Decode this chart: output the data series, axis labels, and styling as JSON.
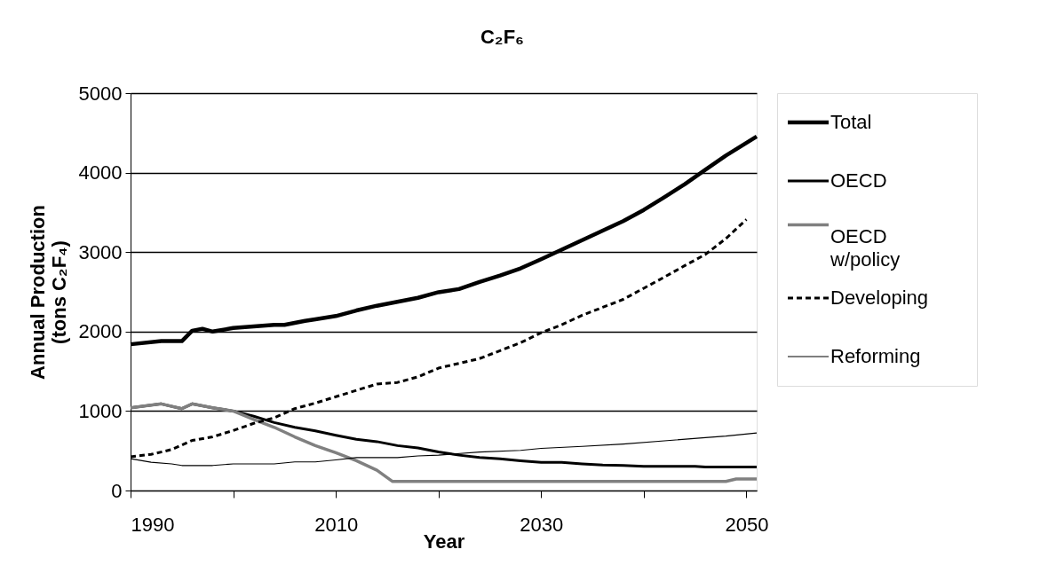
{
  "chart_data": {
    "type": "line",
    "title": "C₂F₆",
    "xlabel": "Year",
    "ylabel": "Annual Production\n(tons C₂F₄)",
    "xlim": [
      1990,
      2051
    ],
    "xticks": [
      1990,
      {
        "value": 2000,
        "label": null
      },
      2010,
      {
        "value": 2020,
        "label": null
      },
      2030,
      {
        "value": 2040,
        "label": null
      },
      2050
    ],
    "ylim": [
      0,
      5000
    ],
    "yticks": [
      0,
      1000,
      2000,
      3000,
      4000,
      5000
    ],
    "grid": "y",
    "legend": "right",
    "marker": "none",
    "series": [
      {
        "name": "Total",
        "color": "#000000",
        "line_style": "solid",
        "x": [
          1990,
          1993,
          1995,
          1996,
          1997,
          1998,
          2000,
          2002,
          2004,
          2005,
          2007,
          2008,
          2010,
          2012,
          2014,
          2016,
          2018,
          2020,
          2022,
          2024,
          2026,
          2028,
          2030,
          2032,
          2034,
          2036,
          2038,
          2040,
          2042,
          2044,
          2046,
          2048,
          2051
        ],
        "values": [
          1840,
          1880,
          1880,
          2010,
          2035,
          2000,
          2045,
          2065,
          2085,
          2085,
          2135,
          2155,
          2195,
          2265,
          2325,
          2375,
          2425,
          2495,
          2535,
          2625,
          2705,
          2795,
          2910,
          3030,
          3150,
          3270,
          3390,
          3530,
          3690,
          3855,
          4035,
          4215,
          4455
        ]
      },
      {
        "name": "OECD",
        "color": "#000000",
        "line_style": "solid",
        "x": [
          1990,
          1993,
          1995,
          1996,
          1998,
          2000,
          2002,
          2004,
          2006,
          2008,
          2010,
          2012,
          2014,
          2016,
          2018,
          2020,
          2022,
          2024,
          2026,
          2028,
          2030,
          2032,
          2034,
          2036,
          2038,
          2040,
          2045,
          2046,
          2051
        ],
        "values": [
          1040,
          1090,
          1030,
          1090,
          1040,
          1000,
          935,
          855,
          795,
          750,
          695,
          645,
          615,
          565,
          535,
          485,
          445,
          415,
          400,
          375,
          355,
          355,
          335,
          320,
          315,
          305,
          305,
          295,
          295
        ]
      },
      {
        "name": "OECD w/policy",
        "color": "#808080",
        "line_style": "solid",
        "x": [
          1990,
          1993,
          1995,
          1996,
          1998,
          2000,
          2002,
          2004,
          2006,
          2008,
          2010,
          2012,
          2014,
          2015.5,
          2048,
          2049,
          2051
        ],
        "values": [
          1040,
          1090,
          1030,
          1090,
          1040,
          1000,
          895,
          795,
          675,
          565,
          475,
          375,
          255,
          115,
          115,
          145,
          145
        ]
      },
      {
        "name": "Developing",
        "color": "#000000",
        "line_style": "dashed",
        "x": [
          1990,
          1992,
          1994,
          1996,
          1998,
          2000,
          2002,
          2004,
          2006,
          2008,
          2010,
          2012,
          2014,
          2016,
          2018,
          2020,
          2022,
          2024,
          2026,
          2028,
          2030,
          2032,
          2034,
          2036,
          2038,
          2040,
          2042,
          2044,
          2046,
          2048,
          2050
        ],
        "values": [
          425,
          455,
          515,
          630,
          675,
          755,
          845,
          915,
          1030,
          1100,
          1180,
          1260,
          1340,
          1360,
          1430,
          1540,
          1600,
          1660,
          1760,
          1860,
          1985,
          2085,
          2205,
          2305,
          2405,
          2545,
          2685,
          2830,
          2970,
          3170,
          3410
        ]
      },
      {
        "name": "Reforming",
        "color": "#000000",
        "line_style": "solid",
        "x": [
          1990,
          1992,
          1994,
          1995,
          1998,
          2000,
          2004,
          2006,
          2008,
          2010,
          2012,
          2016,
          2018,
          2020,
          2024,
          2028,
          2030,
          2034,
          2038,
          2042,
          2046,
          2048,
          2051
        ],
        "values": [
          400,
          355,
          335,
          315,
          315,
          335,
          335,
          360,
          360,
          385,
          415,
          415,
          435,
          445,
          485,
          505,
          530,
          555,
          585,
          625,
          665,
          685,
          725
        ]
      }
    ]
  }
}
